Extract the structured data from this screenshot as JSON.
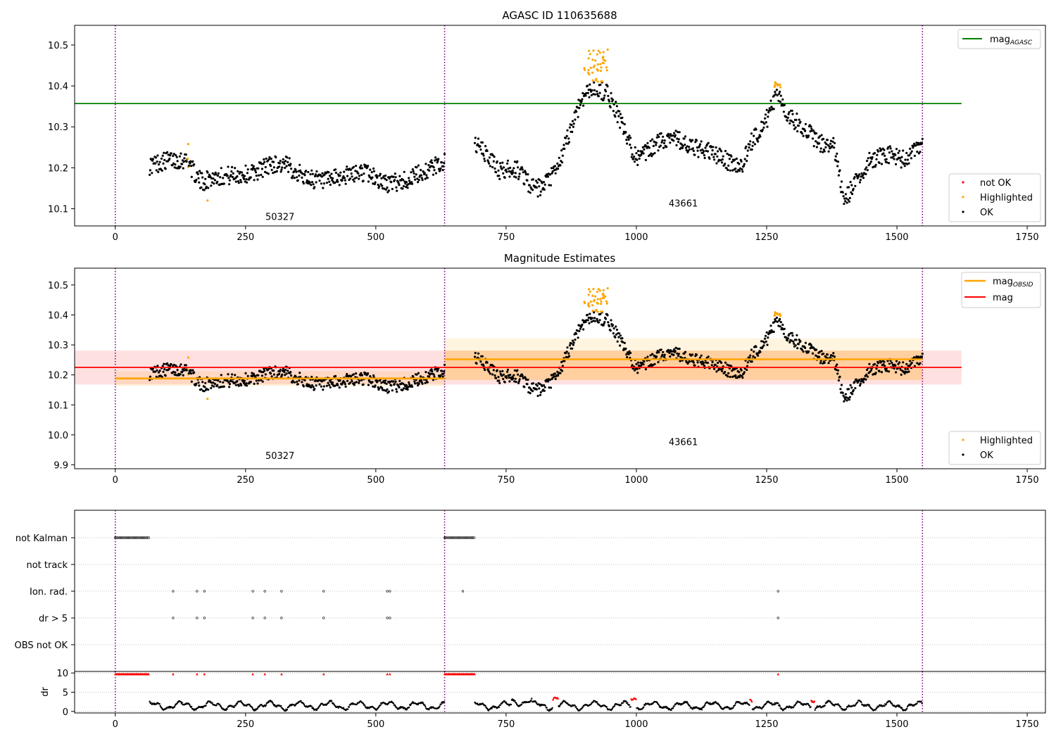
{
  "chart_data": [
    {
      "type": "scatter",
      "title": "AGASC ID 110635688",
      "xlim": [
        -78,
        1785
      ],
      "ylim": [
        10.058,
        10.548
      ],
      "xticks": [
        0,
        250,
        500,
        750,
        1000,
        1250,
        1500,
        1750
      ],
      "yticks": [
        10.1,
        10.2,
        10.3,
        10.4,
        10.5
      ],
      "vlines": [
        0,
        632,
        1549
      ],
      "hlines": [
        {
          "name": "mag_AGASC",
          "y": 10.357,
          "x0": -78,
          "x1": 1624,
          "color": "#008000"
        }
      ],
      "segment_labels": [
        {
          "text": "50327",
          "x": 316,
          "y": 10.073
        },
        {
          "text": "43661",
          "x": 1090,
          "y": 10.105
        }
      ],
      "legend_upper": {
        "position": "top-right",
        "entries": [
          {
            "label": "mag",
            "sub": "AGASC",
            "marker": "line",
            "color": "#008000"
          }
        ]
      },
      "legend_lower": {
        "position": "bottom-right",
        "entries": [
          {
            "label": "not OK",
            "marker": "dot",
            "color": "#ff0000"
          },
          {
            "label": "Highlighted",
            "marker": "dot",
            "color": "#ffa500"
          },
          {
            "label": "OK",
            "marker": "dot",
            "color": "#000000"
          }
        ]
      }
    },
    {
      "type": "scatter",
      "title": "Magnitude Estimates",
      "xlim": [
        -78,
        1785
      ],
      "ylim": [
        9.887,
        10.556
      ],
      "xticks": [
        0,
        250,
        500,
        750,
        1000,
        1250,
        1500,
        1750
      ],
      "yticks": [
        9.9,
        10.0,
        10.1,
        10.2,
        10.3,
        10.4,
        10.5
      ],
      "ytick_labels": [
        "9.9",
        "10.0",
        "10.1",
        "10.2",
        "10.3",
        "10.4",
        "10.5"
      ],
      "vlines": [
        0,
        632,
        1549
      ],
      "obs_mag": [
        {
          "x0": 0,
          "x1": 632,
          "mean": 10.188,
          "inner": [
            10.183,
            10.193
          ],
          "outer": [
            10.163,
            10.213
          ]
        },
        {
          "x0": 632,
          "x1": 1549,
          "mean": 10.252,
          "inner": [
            10.183,
            10.281
          ],
          "outer": [
            10.183,
            10.322
          ]
        }
      ],
      "mag": {
        "mean": 10.225,
        "band": [
          10.168,
          10.281
        ],
        "x0": -78,
        "x1": 1624
      },
      "segment_labels": [
        {
          "text": "50327",
          "x": 316,
          "y": 9.92
        },
        {
          "text": "43661",
          "x": 1090,
          "y": 9.966
        }
      ],
      "legend_upper": {
        "position": "top-right",
        "entries": [
          {
            "label": "mag",
            "sub": "OBSID",
            "marker": "line",
            "color": "#ffa500"
          },
          {
            "label": "mag",
            "marker": "line",
            "color": "#ff0000"
          }
        ]
      },
      "legend_lower": {
        "position": "bottom-right",
        "entries": [
          {
            "label": "Highlighted",
            "marker": "dot",
            "color": "#ffa500"
          },
          {
            "label": "OK",
            "marker": "dot",
            "color": "#000000"
          }
        ]
      }
    },
    {
      "type": "scatter",
      "xlim": [
        -78,
        1785
      ],
      "flag_labels": [
        "not Kalman",
        "not track",
        "Ion. rad.",
        "dr > 5",
        "OBS not OK"
      ],
      "not_kalman_ranges": [
        [
          0,
          65
        ],
        [
          632,
          690
        ]
      ],
      "ion_rad_x": [
        111,
        157,
        171,
        264,
        287,
        319,
        400,
        522,
        527,
        667,
        1272
      ],
      "dr_gt5_x": [
        111,
        157,
        171,
        264,
        287,
        319,
        400,
        522,
        527,
        1272
      ],
      "vlines": [
        0,
        632,
        1549
      ]
    },
    {
      "type": "scatter",
      "ylabel": "dr",
      "xlim": [
        -78,
        1785
      ],
      "ylim": [
        -0.4,
        10.4
      ],
      "yticks": [
        0,
        5,
        10
      ],
      "xticks": [
        0,
        250,
        500,
        750,
        1000,
        1250,
        1500,
        1750
      ],
      "vlines": [
        0,
        632,
        1549
      ],
      "red_marker_x": [
        111,
        157,
        171,
        264,
        287,
        319,
        400,
        522,
        527,
        1272
      ]
    }
  ]
}
